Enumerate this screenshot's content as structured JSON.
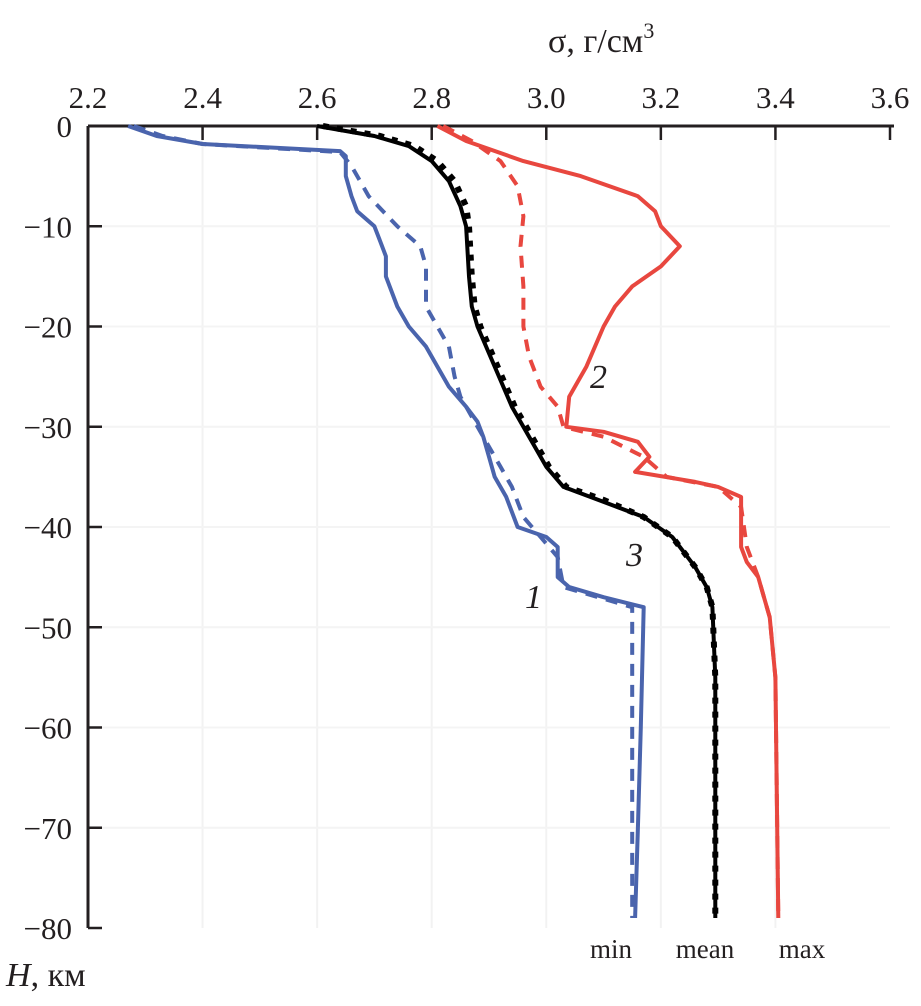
{
  "chart_data": {
    "type": "line",
    "xlabel": "σ, г/см",
    "xlabel_sup": "3",
    "ylabel": "H",
    "ylabel_unit": ", км",
    "xlim": [
      2.2,
      3.6
    ],
    "ylim": [
      -80,
      0
    ],
    "x_axis_position": "top",
    "grid": true,
    "x_ticks": [
      "2.2",
      "2.4",
      "2.6",
      "2.8",
      "3.0",
      "3.2",
      "3.4",
      "3.6"
    ],
    "y_ticks": [
      "0",
      "−10",
      "−20",
      "−30",
      "−40",
      "−50",
      "−60",
      "−70",
      "−80"
    ],
    "curve_labels": [
      {
        "text": "1",
        "series": "min"
      },
      {
        "text": "2",
        "series": "max"
      },
      {
        "text": "3",
        "series": "mean"
      }
    ],
    "bottom_labels": [
      "min",
      "mean",
      "max"
    ],
    "colors": {
      "min": "#4a64ad",
      "mean": "#000000",
      "max": "#e8473f"
    },
    "series": [
      {
        "name": "min",
        "style": "solid",
        "color": "#4a64ad",
        "points": [
          [
            2.27,
            0
          ],
          [
            2.32,
            -1
          ],
          [
            2.4,
            -1.8
          ],
          [
            2.64,
            -2.5
          ],
          [
            2.65,
            -3
          ],
          [
            2.65,
            -5
          ],
          [
            2.66,
            -7
          ],
          [
            2.67,
            -8.5
          ],
          [
            2.7,
            -10
          ],
          [
            2.71,
            -11.5
          ],
          [
            2.72,
            -13
          ],
          [
            2.72,
            -15
          ],
          [
            2.74,
            -18
          ],
          [
            2.76,
            -20
          ],
          [
            2.79,
            -22
          ],
          [
            2.81,
            -24
          ],
          [
            2.83,
            -26
          ],
          [
            2.86,
            -28
          ],
          [
            2.88,
            -29.5
          ],
          [
            2.89,
            -31
          ],
          [
            2.9,
            -33
          ],
          [
            2.91,
            -35
          ],
          [
            2.93,
            -37
          ],
          [
            2.95,
            -40
          ],
          [
            3.0,
            -41
          ],
          [
            3.02,
            -42
          ],
          [
            3.02,
            -45
          ],
          [
            3.04,
            -46
          ],
          [
            3.1,
            -47
          ],
          [
            3.17,
            -48
          ],
          [
            3.165,
            -60
          ],
          [
            3.16,
            -70
          ],
          [
            3.155,
            -79
          ]
        ]
      },
      {
        "name": "min",
        "style": "dashed",
        "color": "#4a64ad",
        "points": [
          [
            2.28,
            0
          ],
          [
            2.33,
            -1
          ],
          [
            2.4,
            -1.8
          ],
          [
            2.64,
            -2.6
          ],
          [
            2.66,
            -4
          ],
          [
            2.69,
            -7
          ],
          [
            2.74,
            -10
          ],
          [
            2.78,
            -12
          ],
          [
            2.79,
            -14
          ],
          [
            2.79,
            -18
          ],
          [
            2.81,
            -20
          ],
          [
            2.83,
            -22
          ],
          [
            2.84,
            -25
          ],
          [
            2.85,
            -27
          ],
          [
            2.87,
            -29
          ],
          [
            2.9,
            -32
          ],
          [
            2.92,
            -34
          ],
          [
            2.94,
            -36
          ],
          [
            2.96,
            -39
          ],
          [
            2.99,
            -41
          ],
          [
            3.02,
            -43
          ],
          [
            3.03,
            -46
          ],
          [
            3.15,
            -48
          ],
          [
            3.15,
            -60
          ],
          [
            3.15,
            -79
          ]
        ]
      },
      {
        "name": "mean",
        "style": "solid",
        "color": "#000000",
        "points": [
          [
            2.6,
            0
          ],
          [
            2.7,
            -1
          ],
          [
            2.76,
            -2
          ],
          [
            2.8,
            -3.5
          ],
          [
            2.83,
            -5.5
          ],
          [
            2.85,
            -8
          ],
          [
            2.86,
            -10
          ],
          [
            2.865,
            -15
          ],
          [
            2.87,
            -18
          ],
          [
            2.88,
            -20
          ],
          [
            2.91,
            -24
          ],
          [
            2.94,
            -28
          ],
          [
            2.97,
            -31
          ],
          [
            3.0,
            -34
          ],
          [
            3.03,
            -36
          ],
          [
            3.1,
            -37.5
          ],
          [
            3.17,
            -39
          ],
          [
            3.22,
            -41
          ],
          [
            3.26,
            -44
          ],
          [
            3.28,
            -46
          ],
          [
            3.29,
            -48
          ],
          [
            3.295,
            -55
          ],
          [
            3.295,
            -79
          ]
        ]
      },
      {
        "name": "mean",
        "style": "dashed",
        "color": "#000000",
        "points": [
          [
            2.61,
            0
          ],
          [
            2.71,
            -1
          ],
          [
            2.77,
            -2
          ],
          [
            2.81,
            -3.5
          ],
          [
            2.84,
            -5.5
          ],
          [
            2.86,
            -8
          ],
          [
            2.865,
            -10
          ],
          [
            2.87,
            -15
          ],
          [
            2.875,
            -18
          ],
          [
            2.885,
            -20
          ],
          [
            2.915,
            -24
          ],
          [
            2.945,
            -28
          ],
          [
            2.975,
            -31
          ],
          [
            3.005,
            -34
          ],
          [
            3.035,
            -36
          ],
          [
            3.1,
            -37.3
          ],
          [
            3.17,
            -39
          ],
          [
            3.22,
            -41
          ],
          [
            3.26,
            -44
          ],
          [
            3.28,
            -46
          ],
          [
            3.29,
            -48
          ],
          [
            3.295,
            -55
          ],
          [
            3.295,
            -79
          ]
        ]
      },
      {
        "name": "max",
        "style": "solid",
        "color": "#e8473f",
        "points": [
          [
            2.81,
            0
          ],
          [
            2.86,
            -1.5
          ],
          [
            2.96,
            -3.5
          ],
          [
            3.06,
            -5
          ],
          [
            3.16,
            -7
          ],
          [
            3.19,
            -8.5
          ],
          [
            3.2,
            -10
          ],
          [
            3.233,
            -12
          ],
          [
            3.2,
            -14
          ],
          [
            3.15,
            -16
          ],
          [
            3.12,
            -18
          ],
          [
            3.1,
            -20
          ],
          [
            3.07,
            -24
          ],
          [
            3.04,
            -27
          ],
          [
            3.035,
            -30
          ],
          [
            3.1,
            -30.5
          ],
          [
            3.16,
            -31.5
          ],
          [
            3.18,
            -33
          ],
          [
            3.155,
            -34.5
          ],
          [
            3.26,
            -35.5
          ],
          [
            3.3,
            -36
          ],
          [
            3.34,
            -37
          ],
          [
            3.34,
            -42
          ],
          [
            3.35,
            -43.5
          ],
          [
            3.37,
            -45
          ],
          [
            3.39,
            -49
          ],
          [
            3.4,
            -55
          ],
          [
            3.405,
            -79
          ]
        ]
      },
      {
        "name": "max",
        "style": "dashed",
        "color": "#e8473f",
        "points": [
          [
            2.82,
            0
          ],
          [
            2.87,
            -1.5
          ],
          [
            2.92,
            -3.5
          ],
          [
            2.95,
            -6
          ],
          [
            2.96,
            -9
          ],
          [
            2.955,
            -12
          ],
          [
            2.96,
            -16
          ],
          [
            2.96,
            -20
          ],
          [
            2.97,
            -23
          ],
          [
            2.99,
            -26
          ],
          [
            3.02,
            -28
          ],
          [
            3.03,
            -30
          ],
          [
            3.1,
            -31
          ],
          [
            3.17,
            -33
          ],
          [
            3.21,
            -35
          ],
          [
            3.3,
            -36
          ],
          [
            3.34,
            -38
          ],
          [
            3.35,
            -42
          ],
          [
            3.37,
            -45
          ],
          [
            3.39,
            -49
          ],
          [
            3.4,
            -55
          ],
          [
            3.405,
            -79
          ]
        ]
      }
    ]
  }
}
